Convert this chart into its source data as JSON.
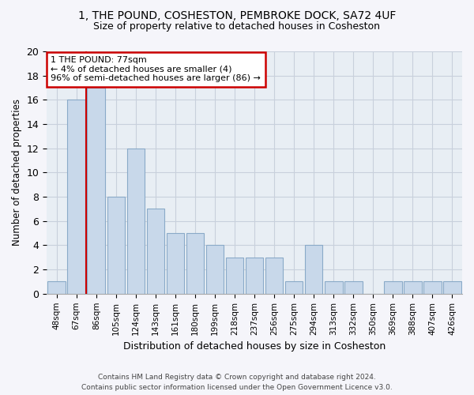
{
  "title": "1, THE POUND, COSHESTON, PEMBROKE DOCK, SA72 4UF",
  "subtitle": "Size of property relative to detached houses in Cosheston",
  "xlabel": "Distribution of detached houses by size in Cosheston",
  "ylabel": "Number of detached properties",
  "bar_color": "#c8d8ea",
  "bar_edgecolor": "#8aaac8",
  "categories": [
    "48sqm",
    "67sqm",
    "86sqm",
    "105sqm",
    "124sqm",
    "143sqm",
    "161sqm",
    "180sqm",
    "199sqm",
    "218sqm",
    "237sqm",
    "256sqm",
    "275sqm",
    "294sqm",
    "313sqm",
    "332sqm",
    "350sqm",
    "369sqm",
    "388sqm",
    "407sqm",
    "426sqm"
  ],
  "values": [
    1,
    16,
    17,
    8,
    12,
    7,
    5,
    5,
    4,
    3,
    3,
    3,
    1,
    4,
    1,
    1,
    0,
    1,
    1,
    1,
    1
  ],
  "ylim": [
    0,
    20
  ],
  "yticks": [
    0,
    2,
    4,
    6,
    8,
    10,
    12,
    14,
    16,
    18,
    20
  ],
  "annotation_text": "1 THE POUND: 77sqm\n← 4% of detached houses are smaller (4)\n96% of semi-detached houses are larger (86) →",
  "annotation_box_color": "#ffffff",
  "annotation_box_edgecolor": "#cc0000",
  "vline_color": "#cc0000",
  "vline_x": 1.5,
  "footer_line1": "Contains HM Land Registry data © Crown copyright and database right 2024.",
  "footer_line2": "Contains public sector information licensed under the Open Government Licence v3.0.",
  "grid_color": "#c8d0dc",
  "bg_color": "#e8eef4",
  "fig_bg": "#f5f5fa"
}
